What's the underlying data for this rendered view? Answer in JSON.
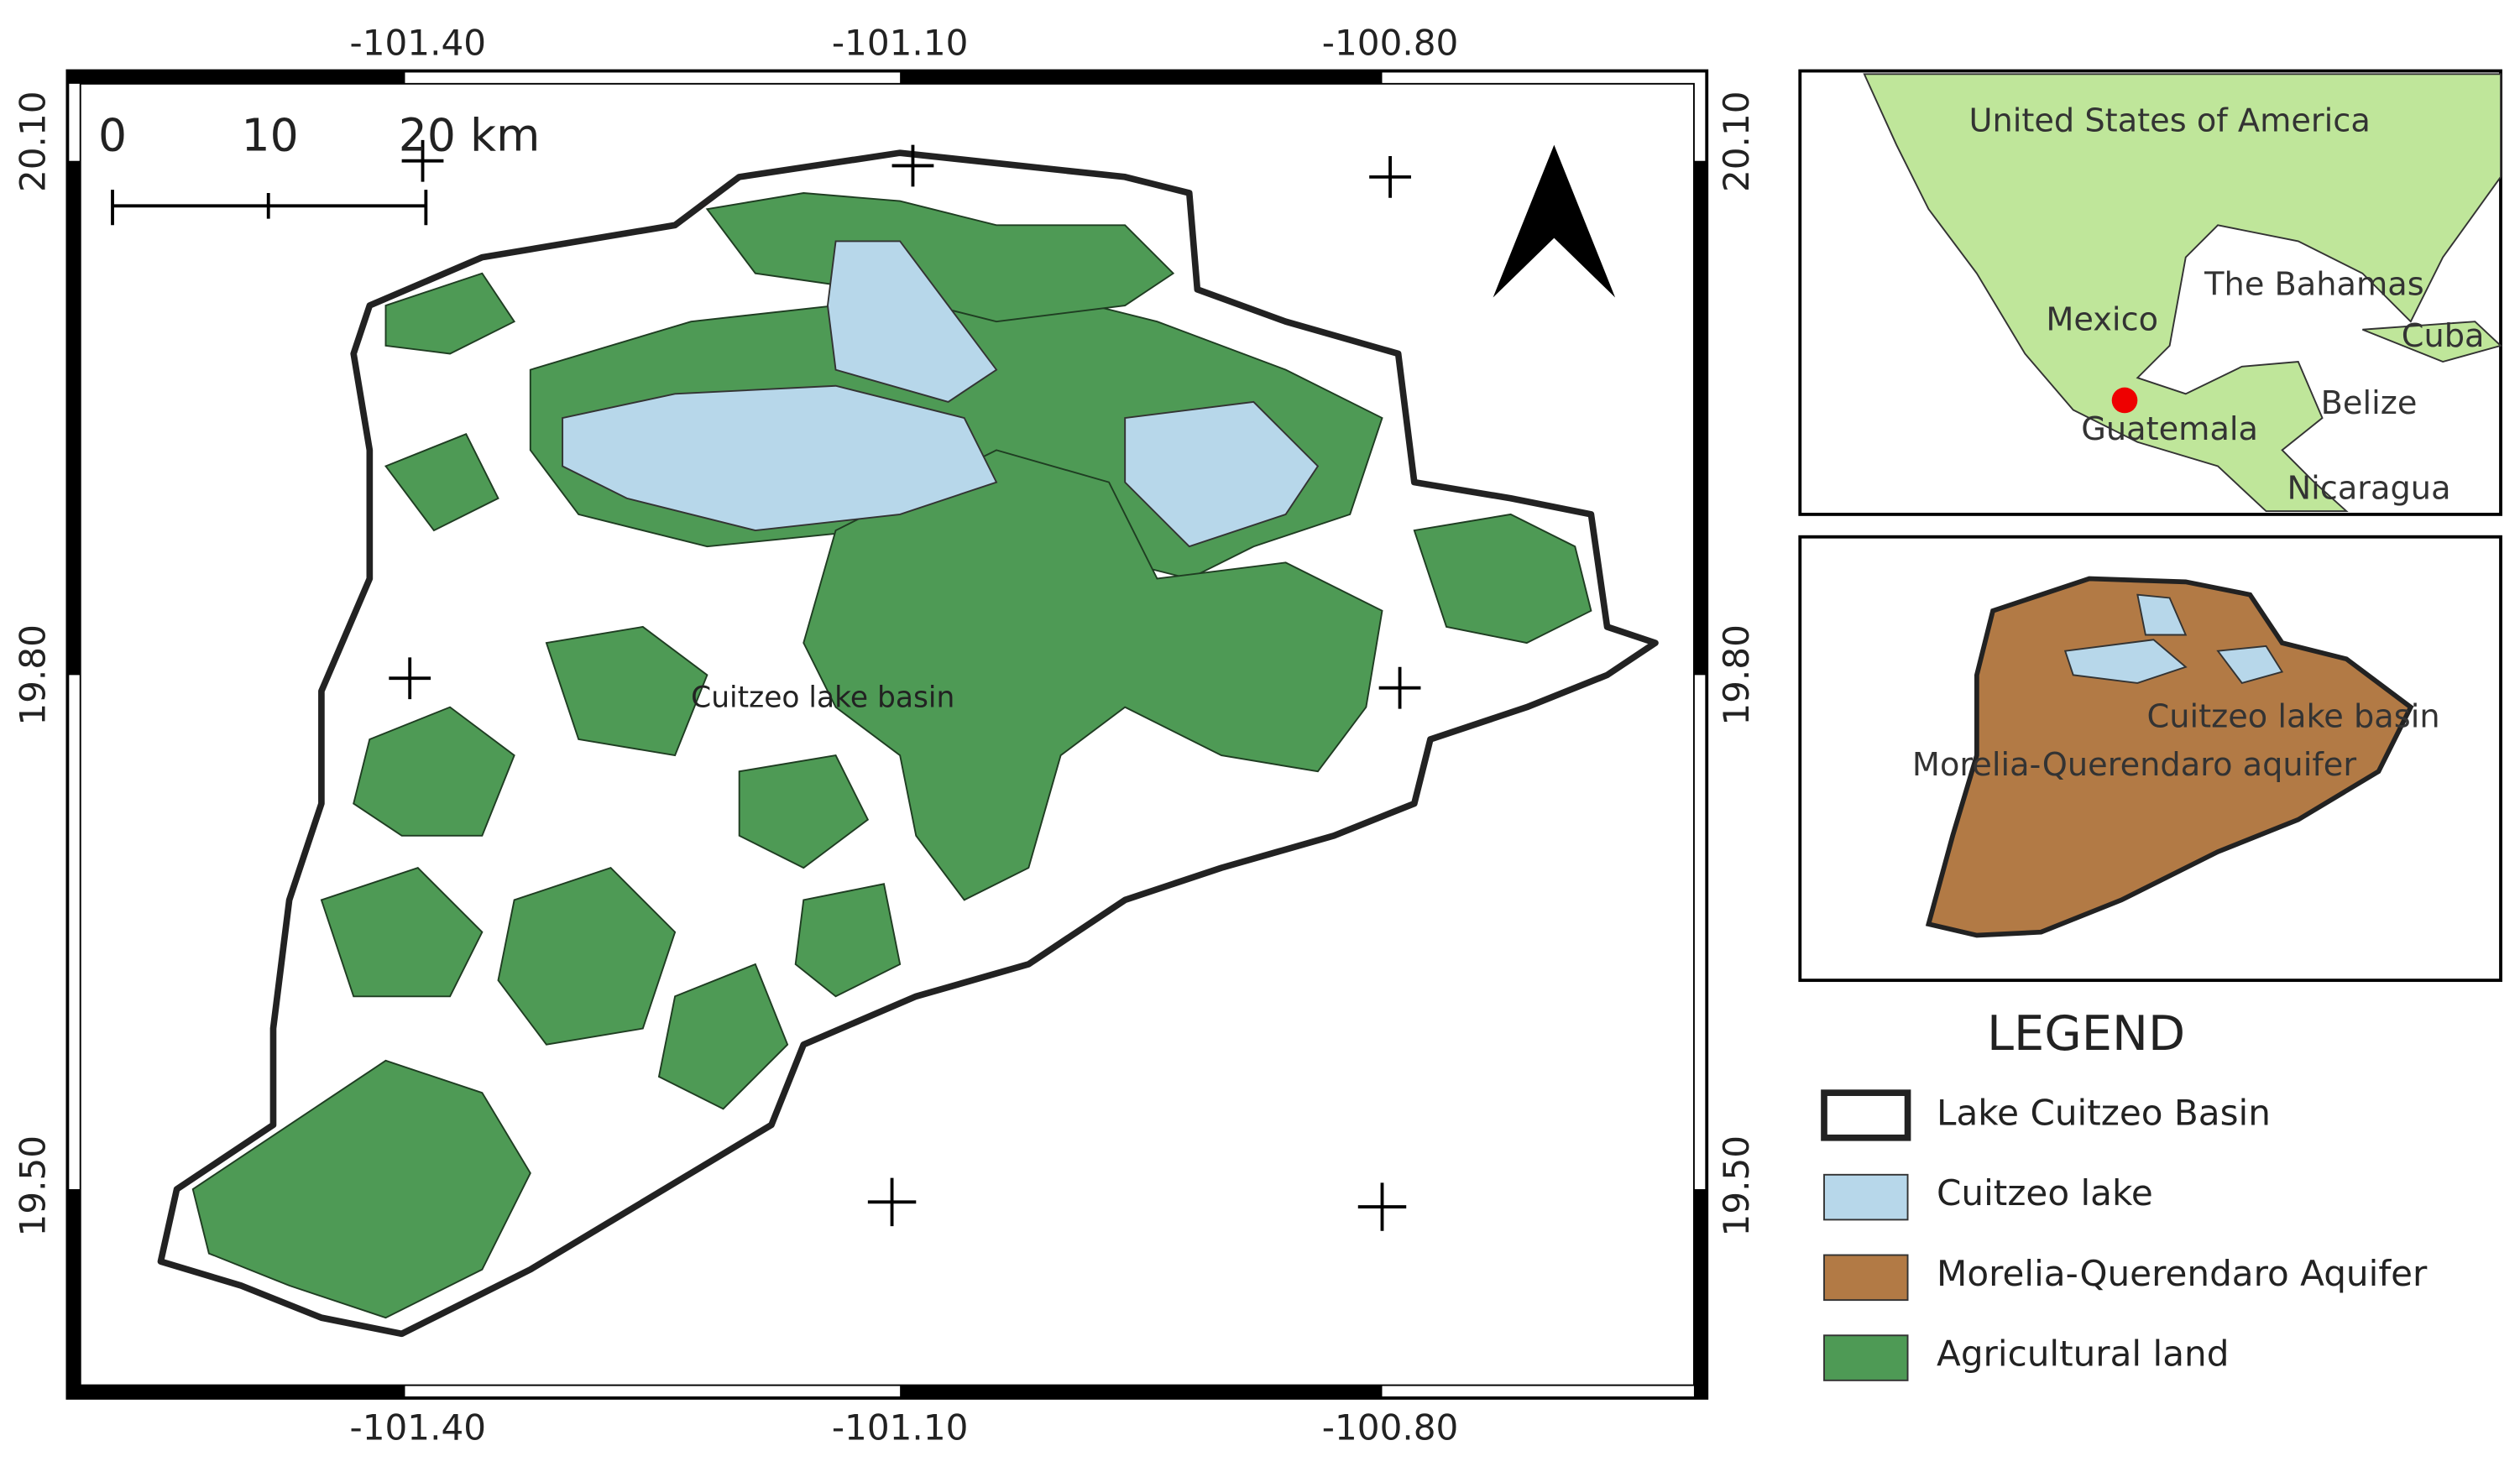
{
  "main_map": {
    "x_labels": [
      "-101.40",
      "-101.10",
      "-100.80"
    ],
    "y_labels": [
      "20.10",
      "19.80",
      "19.50"
    ],
    "scale_bar": [
      "0",
      "10",
      "20 km"
    ],
    "basin_label": "Cuitzeo lake basin"
  },
  "locator_map": {
    "labels": [
      "United States of America",
      "The Bahamas",
      "Mexico",
      "Cuba",
      "Belize",
      "Guatemala",
      "Nicaragua"
    ]
  },
  "aquifer_map": {
    "labels": [
      "Cuitzeo lake basin",
      "Morelia-Querendaro aquifer"
    ]
  },
  "legend": {
    "title": "LEGEND",
    "items": [
      "Lake Cuitzeo Basin",
      "Cuitzeo lake",
      "Morelia-Querendaro Aquifer",
      "Agricultural land"
    ]
  }
}
